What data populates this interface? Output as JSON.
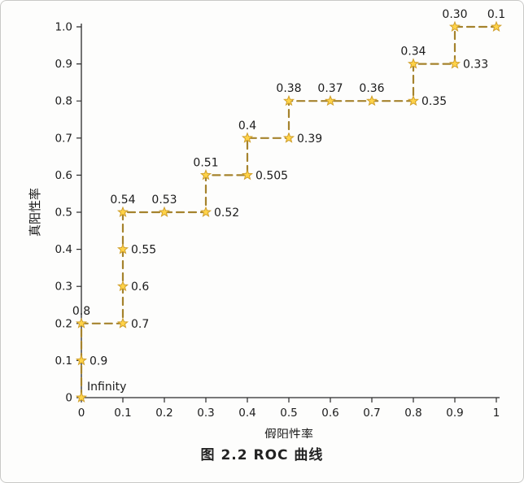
{
  "caption": "图 2.2  ROC 曲线",
  "chart_data": {
    "type": "line",
    "subtype": "roc-step-curve",
    "title": "",
    "xlabel": "假阳性率",
    "ylabel": "真阳性率",
    "xlim": [
      0,
      1
    ],
    "ylim": [
      0,
      1
    ],
    "grid": false,
    "legend": "none",
    "x_ticks": [
      0,
      0.1,
      0.2,
      0.3,
      0.4,
      0.5,
      0.6,
      0.7,
      0.8,
      0.9,
      1
    ],
    "x_tick_labels": [
      "0",
      "0.1",
      "0.2",
      "0.3",
      "0.4",
      "0.5",
      "0.6",
      "0.7",
      "0.8",
      "0.9",
      "1"
    ],
    "y_ticks": [
      0,
      0.1,
      0.2,
      0.3,
      0.4,
      0.5,
      0.6,
      0.7,
      0.8,
      0.9,
      1
    ],
    "y_tick_labels": [
      "0",
      "0.1",
      "0.2",
      "0.3",
      "0.4",
      "0.5",
      "0.6",
      "0.7",
      "0.8",
      "0.9",
      "1.0"
    ],
    "line_color": "#a5832d",
    "line_dash": "9 6",
    "line_width": 2.2,
    "marker_color": "#ffd348",
    "marker_edge_color": "#cf9f2b",
    "points": [
      {
        "x": 0,
        "y": 0,
        "label": "Infinity",
        "label_pos": "right-above"
      },
      {
        "x": 0,
        "y": 0.1,
        "label": "0.9",
        "label_pos": "right"
      },
      {
        "x": 0,
        "y": 0.2,
        "label": "0.8",
        "label_pos": "above"
      },
      {
        "x": 0.1,
        "y": 0.2,
        "label": "0.7",
        "label_pos": "right"
      },
      {
        "x": 0.1,
        "y": 0.3,
        "label": "0.6",
        "label_pos": "right"
      },
      {
        "x": 0.1,
        "y": 0.4,
        "label": "0.55",
        "label_pos": "right"
      },
      {
        "x": 0.1,
        "y": 0.5,
        "label": "0.54",
        "label_pos": "above"
      },
      {
        "x": 0.2,
        "y": 0.5,
        "label": "0.53",
        "label_pos": "above"
      },
      {
        "x": 0.3,
        "y": 0.5,
        "label": "0.52",
        "label_pos": "right"
      },
      {
        "x": 0.3,
        "y": 0.6,
        "label": "0.51",
        "label_pos": "above"
      },
      {
        "x": 0.4,
        "y": 0.6,
        "label": "0.505",
        "label_pos": "right"
      },
      {
        "x": 0.4,
        "y": 0.7,
        "label": "0.4",
        "label_pos": "above"
      },
      {
        "x": 0.5,
        "y": 0.7,
        "label": "0.39",
        "label_pos": "right"
      },
      {
        "x": 0.5,
        "y": 0.8,
        "label": "0.38",
        "label_pos": "above"
      },
      {
        "x": 0.6,
        "y": 0.8,
        "label": "0.37",
        "label_pos": "above"
      },
      {
        "x": 0.7,
        "y": 0.8,
        "label": "0.36",
        "label_pos": "above"
      },
      {
        "x": 0.8,
        "y": 0.8,
        "label": "0.35",
        "label_pos": "right"
      },
      {
        "x": 0.8,
        "y": 0.9,
        "label": "0.34",
        "label_pos": "above"
      },
      {
        "x": 0.9,
        "y": 0.9,
        "label": "0.33",
        "label_pos": "right"
      },
      {
        "x": 0.9,
        "y": 1,
        "label": "0.30",
        "label_pos": "above"
      },
      {
        "x": 1,
        "y": 1,
        "label": "0.1",
        "label_pos": "above"
      }
    ]
  }
}
